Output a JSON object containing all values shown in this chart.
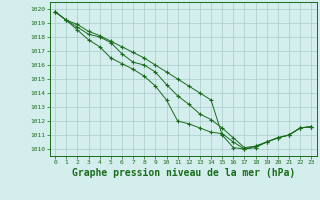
{
  "background_color": "#d4eeee",
  "grid_color": "#aacccc",
  "line_color": "#1a6b1a",
  "marker_color": "#1a6b1a",
  "xlabel": "Graphe pression niveau de la mer (hPa)",
  "xlabel_fontsize": 7,
  "xlim": [
    -0.5,
    23.5
  ],
  "ylim": [
    1009.5,
    1020.5
  ],
  "yticks": [
    1010,
    1011,
    1012,
    1013,
    1014,
    1015,
    1016,
    1017,
    1018,
    1019,
    1020
  ],
  "xticks": [
    0,
    1,
    2,
    3,
    4,
    5,
    6,
    7,
    8,
    9,
    10,
    11,
    12,
    13,
    14,
    15,
    16,
    17,
    18,
    19,
    20,
    21,
    22,
    23
  ],
  "series": [
    [
      1019.8,
      1019.2,
      1018.9,
      1018.4,
      1018.1,
      1017.7,
      1017.3,
      1016.9,
      1016.5,
      1016.0,
      1015.5,
      1015.0,
      1014.5,
      1014.0,
      1013.5,
      1011.0,
      1010.1,
      1010.0,
      1010.1,
      1010.5,
      1010.8,
      1011.0,
      1011.5,
      1011.6
    ],
    [
      1019.8,
      1019.2,
      1018.7,
      1018.2,
      1018.0,
      1017.6,
      1016.8,
      1016.2,
      1016.0,
      1015.5,
      1014.6,
      1013.8,
      1013.2,
      1012.5,
      1012.1,
      1011.5,
      1010.8,
      1010.1,
      1010.2,
      1010.5,
      1010.8,
      1011.0,
      1011.5,
      1011.6
    ],
    [
      1019.8,
      1019.2,
      1018.5,
      1017.8,
      1017.3,
      1016.5,
      1016.1,
      1015.7,
      1015.2,
      1014.5,
      1013.5,
      1012.0,
      1011.8,
      1011.5,
      1011.2,
      1011.1,
      1010.5,
      1010.0,
      1010.2,
      1010.5,
      1010.8,
      1011.0,
      1011.5,
      1011.6
    ]
  ]
}
